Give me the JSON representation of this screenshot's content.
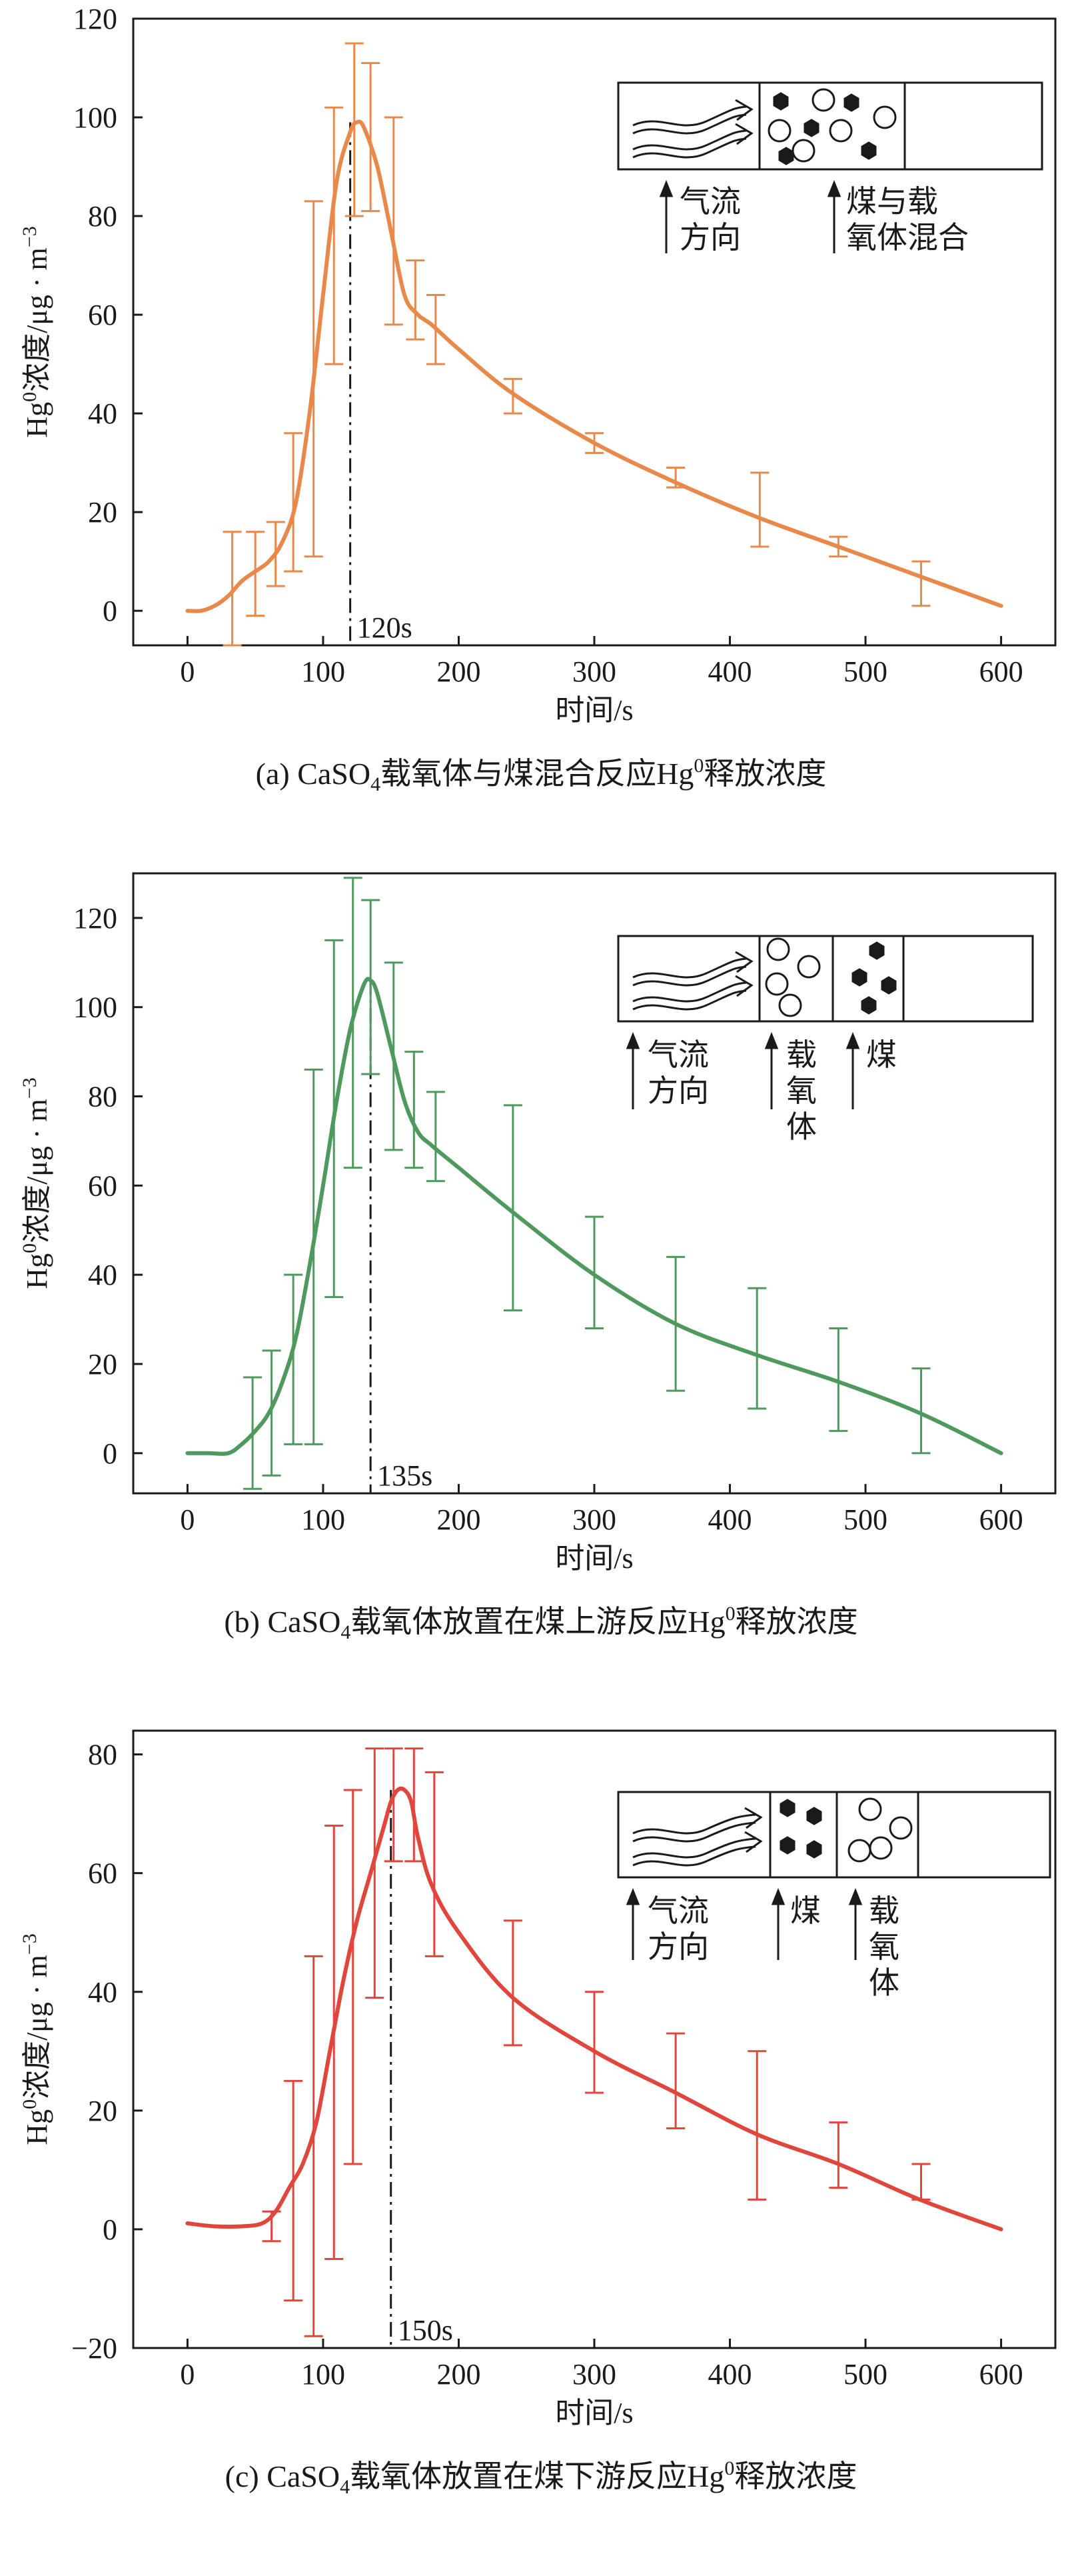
{
  "chart_data": [
    {
      "id": "a",
      "type": "line",
      "title": "",
      "caption_prefix": "(a) CaSO",
      "caption_sub": "4",
      "caption_mid": "载氧体与煤混合反应Hg",
      "caption_sup": "0",
      "caption_suffix": "释放浓度",
      "xlabel": "时间/s",
      "ylabel_pre": "Hg",
      "ylabel_sup": "0",
      "ylabel_post": "浓度/μg · m",
      "ylabel_exp": "−3",
      "xlim": [
        -40,
        640
      ],
      "ylim": [
        -7,
        120
      ],
      "xticks": [
        0,
        100,
        200,
        300,
        400,
        500,
        600
      ],
      "yticks": [
        0,
        20,
        40,
        60,
        80,
        100,
        120
      ],
      "color": "#E8894A",
      "peak": {
        "x": 120,
        "label": "120s"
      },
      "curve": {
        "x": [
          0,
          10,
          20,
          30,
          40,
          50,
          60,
          70,
          80,
          90,
          100,
          110,
          120,
          125,
          130,
          140,
          150,
          160,
          170,
          180,
          200,
          240,
          300,
          360,
          420,
          480,
          540,
          600
        ],
        "y": [
          0,
          0,
          1,
          3,
          6,
          8,
          10,
          14,
          22,
          40,
          64,
          87,
          97,
          99,
          98,
          90,
          77,
          64,
          60,
          58,
          53,
          44,
          34,
          26,
          19,
          13,
          7,
          1
        ]
      },
      "errorbars": [
        {
          "x": 33,
          "y": 4,
          "lo": -7,
          "hi": 16
        },
        {
          "x": 50,
          "y": 5,
          "lo": -1,
          "hi": 16
        },
        {
          "x": 65,
          "y": 11,
          "lo": 5,
          "hi": 18
        },
        {
          "x": 78,
          "y": 21,
          "lo": 8,
          "hi": 36
        },
        {
          "x": 93,
          "y": 47,
          "lo": 11,
          "hi": 83
        },
        {
          "x": 108,
          "y": 76,
          "lo": 50,
          "hi": 102
        },
        {
          "x": 123,
          "y": 98,
          "lo": 80,
          "hi": 115
        },
        {
          "x": 135,
          "y": 96,
          "lo": 81,
          "hi": 111
        },
        {
          "x": 152,
          "y": 79,
          "lo": 58,
          "hi": 100
        },
        {
          "x": 168,
          "y": 63,
          "lo": 55,
          "hi": 71
        },
        {
          "x": 183,
          "y": 58,
          "lo": 50,
          "hi": 64
        },
        {
          "x": 240,
          "y": 44,
          "lo": 40,
          "hi": 47
        },
        {
          "x": 300,
          "y": 34,
          "lo": 32,
          "hi": 36
        },
        {
          "x": 360,
          "y": 27,
          "lo": 25,
          "hi": 29
        },
        {
          "x": 422,
          "y": 20,
          "lo": 13,
          "hi": 28
        },
        {
          "x": 480,
          "y": 13,
          "lo": 11,
          "hi": 15
        },
        {
          "x": 541,
          "y": 6,
          "lo": 1,
          "hi": 10
        }
      ],
      "legend": {
        "flow_label_1": "气流",
        "flow_label_2": "方向",
        "mix_label_1": "煤与载",
        "mix_label_2": "氧体混合"
      }
    },
    {
      "id": "b",
      "type": "line",
      "title": "",
      "caption_prefix": "(b) CaSO",
      "caption_sub": "4",
      "caption_mid": "载氧体放置在煤上游反应Hg",
      "caption_sup": "0",
      "caption_suffix": "释放浓度",
      "xlabel": "时间/s",
      "ylabel_pre": "Hg",
      "ylabel_sup": "0",
      "ylabel_post": "浓度/μg · m",
      "ylabel_exp": "−3",
      "xlim": [
        -40,
        640
      ],
      "ylim": [
        -9,
        130
      ],
      "xticks": [
        0,
        100,
        200,
        300,
        400,
        500,
        600
      ],
      "yticks": [
        0,
        20,
        40,
        60,
        80,
        100,
        120
      ],
      "color": "#4E9A5E",
      "peak": {
        "x": 135,
        "label": "135s"
      },
      "curve": {
        "x": [
          0,
          15,
          30,
          40,
          50,
          60,
          70,
          80,
          90,
          100,
          110,
          120,
          130,
          135,
          140,
          150,
          160,
          170,
          180,
          200,
          240,
          300,
          360,
          420,
          480,
          540,
          600
        ],
        "y": [
          0,
          0,
          0,
          2,
          5,
          9,
          16,
          26,
          42,
          60,
          79,
          95,
          105,
          106,
          103,
          91,
          79,
          72,
          69,
          64,
          54,
          40,
          29,
          22,
          16,
          9,
          0
        ]
      },
      "errorbars": [
        {
          "x": 48,
          "y": 4,
          "lo": -8,
          "hi": 17
        },
        {
          "x": 62,
          "y": 9,
          "lo": -5,
          "hi": 23
        },
        {
          "x": 78,
          "y": 21,
          "lo": 2,
          "hi": 40
        },
        {
          "x": 93,
          "y": 44,
          "lo": 2,
          "hi": 86
        },
        {
          "x": 108,
          "y": 75,
          "lo": 35,
          "hi": 115
        },
        {
          "x": 122,
          "y": 97,
          "lo": 64,
          "hi": 129
        },
        {
          "x": 135,
          "y": 104,
          "lo": 85,
          "hi": 124
        },
        {
          "x": 152,
          "y": 89,
          "lo": 68,
          "hi": 110
        },
        {
          "x": 167,
          "y": 76,
          "lo": 64,
          "hi": 90
        },
        {
          "x": 183,
          "y": 70,
          "lo": 61,
          "hi": 81
        },
        {
          "x": 240,
          "y": 55,
          "lo": 32,
          "hi": 78
        },
        {
          "x": 300,
          "y": 40,
          "lo": 28,
          "hi": 53
        },
        {
          "x": 360,
          "y": 29,
          "lo": 14,
          "hi": 44
        },
        {
          "x": 420,
          "y": 23,
          "lo": 10,
          "hi": 37
        },
        {
          "x": 480,
          "y": 16,
          "lo": 5,
          "hi": 28
        },
        {
          "x": 541,
          "y": 9,
          "lo": 0,
          "hi": 19
        }
      ],
      "legend": {
        "flow_label_1": "气流",
        "flow_label_2": "方向",
        "carrier_1": "载",
        "carrier_2": "氧",
        "carrier_3": "体",
        "coal": "煤"
      }
    },
    {
      "id": "c",
      "type": "line",
      "title": "",
      "caption_prefix": "(c) CaSO",
      "caption_sub": "4",
      "caption_mid": "载氧体放置在煤下游反应Hg",
      "caption_sup": "0",
      "caption_suffix": "释放浓度",
      "xlabel": "时间/s",
      "ylabel_pre": "Hg",
      "ylabel_sup": "0",
      "ylabel_post": "浓度/μg · m",
      "ylabel_exp": "−3",
      "xlim": [
        -40,
        640
      ],
      "ylim": [
        -20,
        84
      ],
      "xticks": [
        0,
        100,
        200,
        300,
        400,
        500,
        600
      ],
      "yticks": [
        -20,
        0,
        20,
        40,
        60,
        80
      ],
      "color": "#E0463C",
      "peak": {
        "x": 150,
        "label": "150s"
      },
      "curve": {
        "x": [
          0,
          20,
          40,
          55,
          65,
          75,
          85,
          95,
          105,
          115,
          125,
          135,
          145,
          150,
          155,
          160,
          165,
          170,
          180,
          200,
          240,
          300,
          360,
          420,
          480,
          540,
          600
        ],
        "y": [
          1,
          0.5,
          0.5,
          1,
          3,
          7,
          11,
          18,
          30,
          42,
          52,
          60,
          68,
          72,
          74,
          74,
          72,
          66,
          58,
          50,
          39,
          30,
          23,
          16,
          11,
          5,
          0
        ]
      },
      "errorbars": [
        {
          "x": 62,
          "y": 1,
          "lo": -2,
          "hi": 3
        },
        {
          "x": 78,
          "y": 7,
          "lo": -12,
          "hi": 25
        },
        {
          "x": 93,
          "y": 14,
          "lo": -18,
          "hi": 46
        },
        {
          "x": 108,
          "y": 32,
          "lo": -5,
          "hi": 68
        },
        {
          "x": 122,
          "y": 43,
          "lo": 11,
          "hi": 74
        },
        {
          "x": 138,
          "y": 61,
          "lo": 39,
          "hi": 81
        },
        {
          "x": 152,
          "y": 72,
          "lo": 62,
          "hi": 81
        },
        {
          "x": 167,
          "y": 72,
          "lo": 62,
          "hi": 81
        },
        {
          "x": 182,
          "y": 62,
          "lo": 46,
          "hi": 77
        },
        {
          "x": 240,
          "y": 41,
          "lo": 31,
          "hi": 52
        },
        {
          "x": 300,
          "y": 31,
          "lo": 23,
          "hi": 40
        },
        {
          "x": 360,
          "y": 25,
          "lo": 17,
          "hi": 33
        },
        {
          "x": 420,
          "y": 17,
          "lo": 5,
          "hi": 30
        },
        {
          "x": 480,
          "y": 12,
          "lo": 7,
          "hi": 18
        },
        {
          "x": 541,
          "y": 8,
          "lo": 5,
          "hi": 11
        }
      ],
      "legend": {
        "flow_label_1": "气流",
        "flow_label_2": "方向",
        "coal": "煤",
        "carrier_1": "载",
        "carrier_2": "氧",
        "carrier_3": "体"
      }
    }
  ]
}
